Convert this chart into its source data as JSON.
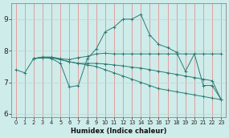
{
  "xlabel": "Humidex (Indice chaleur)",
  "bg_color": "#ceecea",
  "line_color": "#2d7a72",
  "grid_color_v": "#e88080",
  "grid_color_h": "#b8d8d4",
  "series": [
    {
      "x": [
        0,
        1,
        2,
        3,
        4,
        5,
        6,
        7,
        8,
        9,
        10,
        11,
        12,
        13,
        14,
        15,
        16,
        17,
        18,
        19,
        20,
        21,
        22,
        23
      ],
      "y": [
        7.4,
        7.3,
        7.75,
        7.8,
        7.75,
        7.6,
        6.85,
        6.9,
        7.75,
        8.05,
        8.6,
        8.75,
        9.0,
        9.0,
        9.15,
        8.5,
        8.2,
        8.1,
        7.95,
        7.35,
        7.9,
        6.9,
        6.9,
        6.45
      ]
    },
    {
      "x": [
        2,
        3,
        4,
        5,
        6,
        7,
        8,
        9,
        10,
        11,
        12,
        13,
        14,
        15,
        16,
        17,
        18,
        19,
        20,
        21,
        22,
        23
      ],
      "y": [
        7.75,
        7.8,
        7.8,
        7.75,
        7.72,
        7.78,
        7.82,
        7.9,
        7.92,
        7.9,
        7.9,
        7.9,
        7.9,
        7.9,
        7.9,
        7.9,
        7.9,
        7.9,
        7.9,
        7.9,
        7.9,
        7.9
      ]
    },
    {
      "x": [
        2,
        3,
        4,
        5,
        6,
        7,
        8,
        9,
        10,
        11,
        12,
        13,
        14,
        15,
        16,
        17,
        18,
        19,
        20,
        21,
        22,
        23
      ],
      "y": [
        7.75,
        7.78,
        7.78,
        7.72,
        7.65,
        7.6,
        7.6,
        7.6,
        7.58,
        7.55,
        7.52,
        7.48,
        7.45,
        7.4,
        7.35,
        7.3,
        7.25,
        7.2,
        7.15,
        7.1,
        7.05,
        6.45
      ]
    },
    {
      "x": [
        2,
        3,
        4,
        5,
        6,
        7,
        8,
        9,
        10,
        11,
        12,
        13,
        14,
        15,
        16,
        17,
        18,
        19,
        20,
        21,
        22,
        23
      ],
      "y": [
        7.75,
        7.78,
        7.78,
        7.72,
        7.65,
        7.6,
        7.55,
        7.5,
        7.4,
        7.3,
        7.2,
        7.1,
        7.0,
        6.9,
        6.8,
        6.75,
        6.7,
        6.65,
        6.6,
        6.55,
        6.5,
        6.45
      ]
    }
  ],
  "yticks": [
    6,
    7,
    8,
    9
  ],
  "xticks": [
    0,
    1,
    2,
    3,
    4,
    5,
    6,
    7,
    8,
    9,
    10,
    11,
    12,
    13,
    14,
    15,
    16,
    17,
    18,
    19,
    20,
    21,
    22,
    23
  ],
  "xlim": [
    -0.5,
    23.5
  ],
  "ylim": [
    5.9,
    9.5
  ]
}
